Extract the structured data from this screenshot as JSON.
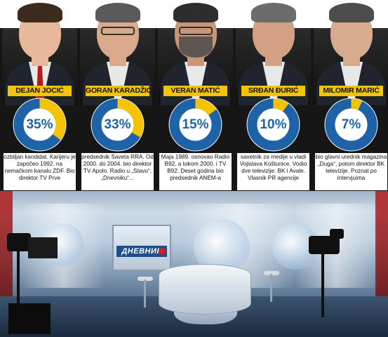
{
  "people": [
    {
      "name": "DEJAN JOCIĆ",
      "percent": "35%",
      "share": 0.35,
      "bio": "ozbiljan kandidat. Karijeru je započeo 1992. na nemačkom kanalu ZDF. Bio direktor TV Prve",
      "skin": "#e7b89a",
      "hair": "#3b2a1d"
    },
    {
      "name": "GORAN KARADŽIĆ",
      "percent": "33%",
      "share": 0.33,
      "bio": "predsednik Saveta RRA. Od 2000. do 2004. bio direktor TV Apolo. Radio u „Stavu“, „Dnevniku“...",
      "skin": "#d9a98c",
      "hair": "#5a5a5a"
    },
    {
      "name": "VERAN MATIĆ",
      "percent": "15%",
      "share": 0.15,
      "bio": "Maja 1989. osnovao Radio B92, a tokom 2000. i TV B92. Deset godina bio predsednik ANEM-a",
      "skin": "#c99678",
      "hair": "#2d2d2d"
    },
    {
      "name": "SRĐAN ĐURIĆ",
      "percent": "10%",
      "share": 0.1,
      "bio": "savetnik za medije u vladi Vojislava Koštunice. Vodio dve televizije: BK i Avale. Vlasnik PR agencije",
      "skin": "#d4a184",
      "hair": "#6b6b6b"
    },
    {
      "name": "MILOMIR MARIĆ",
      "percent": "7%",
      "share": 0.07,
      "bio": "bio glavni urednik magazina „Duga“, potom direktor BK televizije. Poznat po intervjuima",
      "skin": "#d8ab8f",
      "hair": "#4d4d4d"
    }
  ],
  "studio": {
    "logo_text": "ДНЕВНИК"
  },
  "colors": {
    "gauge_blue": "#1e63a8",
    "gauge_yellow": "#f5c400",
    "namebar": "#f5c400",
    "band": "#161616"
  }
}
